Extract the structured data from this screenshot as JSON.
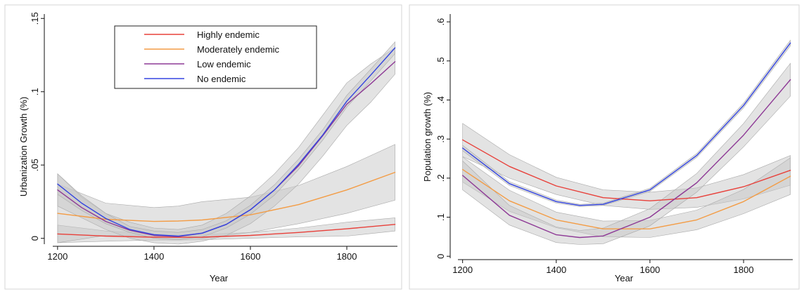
{
  "chart_data": [
    {
      "type": "line",
      "xlabel": "Year",
      "ylabel": "Urbanization Growth (%)",
      "xlim": [
        1190,
        1905
      ],
      "ylim": [
        -0.004,
        0.153
      ],
      "x_ticks": [
        1200,
        1400,
        1600,
        1800
      ],
      "x_tick_labels": [
        "1200",
        "1400",
        "1600",
        "1800"
      ],
      "y_ticks": [
        0,
        0.05,
        0.1,
        0.15
      ],
      "y_tick_labels": [
        "0",
        ".05",
        ".1",
        ".15"
      ],
      "legend": "top-center",
      "confidence_bands": true,
      "grid": false,
      "series": [
        {
          "name": "Highly endemic",
          "color": "#e8403a",
          "x": [
            1200,
            1300,
            1400,
            1450,
            1500,
            1600,
            1700,
            1800,
            1900
          ],
          "y": [
            0.003,
            0.0015,
            0.0008,
            0.0007,
            0.0008,
            0.002,
            0.004,
            0.0065,
            0.0095
          ],
          "ci_low": [
            -0.003,
            -0.002,
            -0.0012,
            -0.0012,
            -0.001,
            0.0,
            0.001,
            0.0015,
            0.005
          ],
          "ci_high": [
            0.009,
            0.005,
            0.003,
            0.0025,
            0.0026,
            0.004,
            0.007,
            0.011,
            0.014
          ]
        },
        {
          "name": "Moderately endemic",
          "color": "#f39c45",
          "x": [
            1200,
            1300,
            1400,
            1450,
            1500,
            1600,
            1700,
            1800,
            1900
          ],
          "y": [
            0.017,
            0.013,
            0.0115,
            0.0118,
            0.0125,
            0.016,
            0.023,
            0.033,
            0.045
          ],
          "ci_low": [
            -0.003,
            0.002,
            0.002,
            0.001,
            0.0,
            0.004,
            0.01,
            0.017,
            0.026
          ],
          "ci_high": [
            0.037,
            0.024,
            0.021,
            0.022,
            0.025,
            0.028,
            0.036,
            0.049,
            0.064
          ]
        },
        {
          "name": "Low endemic",
          "color": "#8e3a96",
          "x": [
            1200,
            1250,
            1300,
            1350,
            1400,
            1450,
            1500,
            1550,
            1600,
            1650,
            1700,
            1750,
            1800,
            1850,
            1900
          ],
          "y": [
            0.033,
            0.021,
            0.0115,
            0.0055,
            0.002,
            0.0012,
            0.0035,
            0.0095,
            0.0195,
            0.033,
            0.0495,
            0.07,
            0.0915,
            0.1055,
            0.1205
          ],
          "ci_low": [
            0.022,
            0.014,
            0.006,
            0.0,
            -0.003,
            -0.004,
            -0.002,
            0.002,
            0.01,
            0.022,
            0.037,
            0.056,
            0.077,
            0.093,
            0.112
          ],
          "ci_high": [
            0.044,
            0.028,
            0.017,
            0.011,
            0.007,
            0.006,
            0.009,
            0.017,
            0.029,
            0.044,
            0.062,
            0.084,
            0.106,
            0.119,
            0.13
          ]
        },
        {
          "name": "No endemic",
          "color": "#3344e0",
          "x": [
            1200,
            1250,
            1300,
            1350,
            1400,
            1450,
            1500,
            1550,
            1600,
            1650,
            1700,
            1750,
            1800,
            1850,
            1900
          ],
          "y": [
            0.037,
            0.024,
            0.0135,
            0.006,
            0.0025,
            0.0015,
            0.0035,
            0.0095,
            0.0195,
            0.033,
            0.0505,
            0.0705,
            0.0935,
            0.1115,
            0.13
          ],
          "ci_low": [
            0.03,
            0.019,
            0.01,
            0.004,
            0.0,
            -0.001,
            0.001,
            0.007,
            0.0165,
            0.0295,
            0.047,
            0.067,
            0.0895,
            0.1075,
            0.126
          ],
          "ci_high": [
            0.044,
            0.029,
            0.017,
            0.008,
            0.005,
            0.004,
            0.006,
            0.012,
            0.0225,
            0.0365,
            0.054,
            0.074,
            0.0975,
            0.1155,
            0.134
          ]
        }
      ]
    },
    {
      "type": "line",
      "xlabel": "Year",
      "ylabel": "Population growth (%)",
      "xlim": [
        1190,
        1905
      ],
      "ylim": [
        -0.005,
        0.62
      ],
      "x_ticks": [
        1200,
        1400,
        1600,
        1800
      ],
      "x_tick_labels": [
        "1200",
        "1400",
        "1600",
        "1800"
      ],
      "y_ticks": [
        0,
        0.1,
        0.2,
        0.3,
        0.4,
        0.5,
        0.6
      ],
      "y_tick_labels": [
        "0",
        ".1",
        ".2",
        ".3",
        ".4",
        ".5",
        ".6"
      ],
      "confidence_bands": true,
      "grid": false,
      "series": [
        {
          "name": "Highly endemic",
          "color": "#e8403a",
          "x": [
            1200,
            1300,
            1400,
            1500,
            1600,
            1700,
            1800,
            1900
          ],
          "y": [
            0.298,
            0.23,
            0.18,
            0.15,
            0.142,
            0.15,
            0.178,
            0.22
          ],
          "ci_low": [
            0.255,
            0.2,
            0.158,
            0.13,
            0.12,
            0.125,
            0.147,
            0.182
          ],
          "ci_high": [
            0.34,
            0.26,
            0.202,
            0.17,
            0.164,
            0.175,
            0.209,
            0.258
          ]
        },
        {
          "name": "Moderately endemic",
          "color": "#f39c45",
          "x": [
            1200,
            1300,
            1400,
            1500,
            1600,
            1700,
            1800,
            1900
          ],
          "y": [
            0.222,
            0.142,
            0.093,
            0.07,
            0.07,
            0.093,
            0.14,
            0.205
          ],
          "ci_low": [
            0.19,
            0.115,
            0.073,
            0.05,
            0.048,
            0.068,
            0.109,
            0.158
          ],
          "ci_high": [
            0.254,
            0.169,
            0.113,
            0.09,
            0.092,
            0.118,
            0.171,
            0.252
          ]
        },
        {
          "name": "Low endemic",
          "color": "#8e3a96",
          "x": [
            1200,
            1300,
            1400,
            1450,
            1500,
            1600,
            1700,
            1800,
            1900
          ],
          "y": [
            0.207,
            0.105,
            0.055,
            0.048,
            0.052,
            0.1,
            0.188,
            0.31,
            0.452
          ],
          "ci_low": [
            0.17,
            0.08,
            0.035,
            0.03,
            0.032,
            0.078,
            0.164,
            0.28,
            0.41
          ],
          "ci_high": [
            0.244,
            0.13,
            0.075,
            0.066,
            0.072,
            0.122,
            0.212,
            0.34,
            0.494
          ]
        },
        {
          "name": "No endemic",
          "color": "#3344e0",
          "x": [
            1200,
            1300,
            1400,
            1450,
            1500,
            1600,
            1700,
            1800,
            1900
          ],
          "y": [
            0.277,
            0.186,
            0.14,
            0.13,
            0.133,
            0.17,
            0.258,
            0.386,
            0.546
          ],
          "ci_low": [
            0.27,
            0.181,
            0.136,
            0.127,
            0.13,
            0.166,
            0.253,
            0.38,
            0.539
          ],
          "ci_high": [
            0.284,
            0.191,
            0.144,
            0.133,
            0.136,
            0.174,
            0.263,
            0.392,
            0.553
          ]
        }
      ]
    }
  ]
}
